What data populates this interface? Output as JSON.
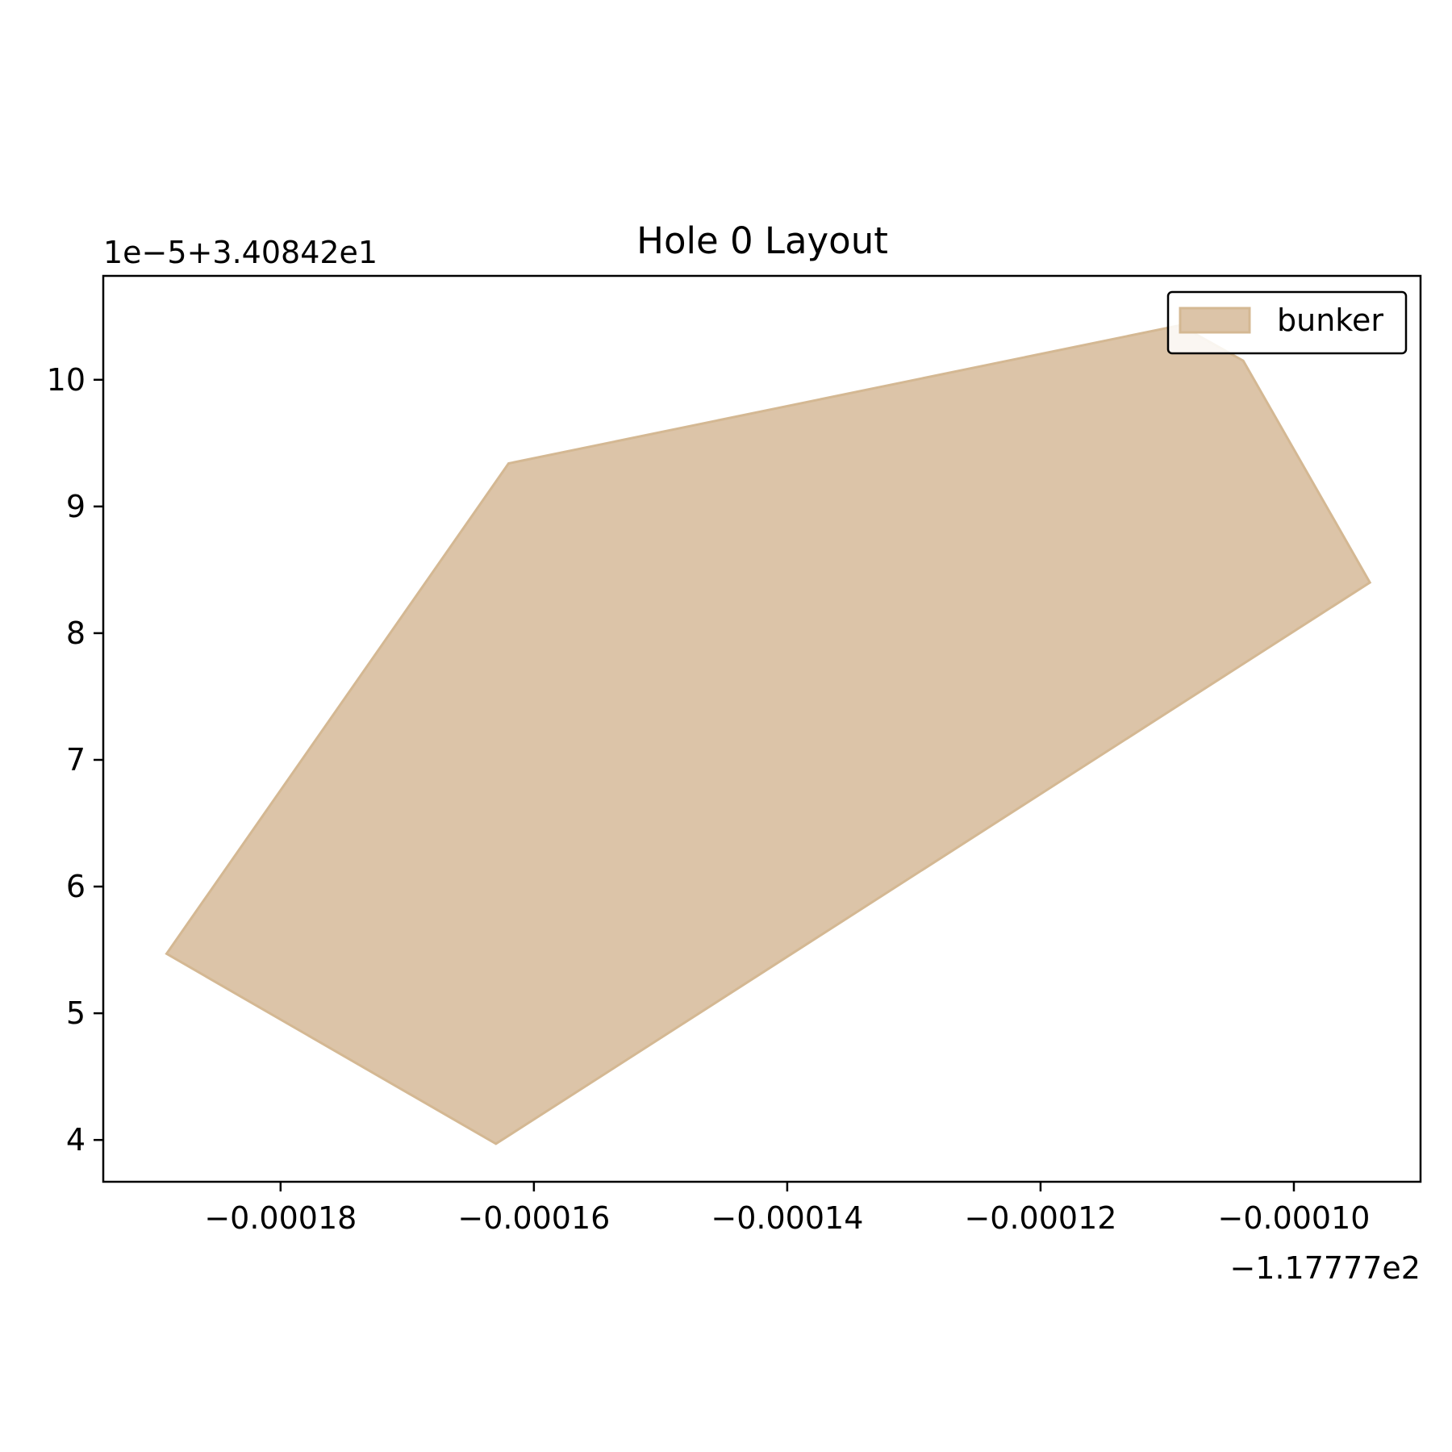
{
  "chart_data": {
    "type": "area",
    "title": "Hole 0 Layout",
    "xlabel": "",
    "ylabel": "",
    "x_offset_label": "−1.17777e2",
    "y_offset_label": "1e−5+3.40842e1",
    "xlim": [
      -0.000194,
      -9e-05
    ],
    "ylim": [
      3.67,
      10.82
    ],
    "x_ticks": [
      {
        "value": -0.00018,
        "label": "−0.00018"
      },
      {
        "value": -0.00016,
        "label": "−0.00016"
      },
      {
        "value": -0.00014,
        "label": "−0.00014"
      },
      {
        "value": -0.00012,
        "label": "−0.00012"
      },
      {
        "value": -0.0001,
        "label": "−0.00010"
      }
    ],
    "y_ticks": [
      {
        "value": 4,
        "label": "4"
      },
      {
        "value": 5,
        "label": "5"
      },
      {
        "value": 6,
        "label": "6"
      },
      {
        "value": 7,
        "label": "7"
      },
      {
        "value": 8,
        "label": "8"
      },
      {
        "value": 9,
        "label": "9"
      },
      {
        "value": 10,
        "label": "10"
      }
    ],
    "grid": false,
    "legend_position": "top-right",
    "series": [
      {
        "name": "bunker",
        "color": "#dcc4a8",
        "edge_color": "#d4b893",
        "polygon": [
          {
            "x": -0.000189,
            "y": 5.47
          },
          {
            "x": -0.000162,
            "y": 9.34
          },
          {
            "x": -0.000109,
            "y": 10.43
          },
          {
            "x": -0.000104,
            "y": 10.15
          },
          {
            "x": -9.4e-05,
            "y": 8.4
          },
          {
            "x": -0.000163,
            "y": 3.97
          }
        ]
      }
    ]
  }
}
